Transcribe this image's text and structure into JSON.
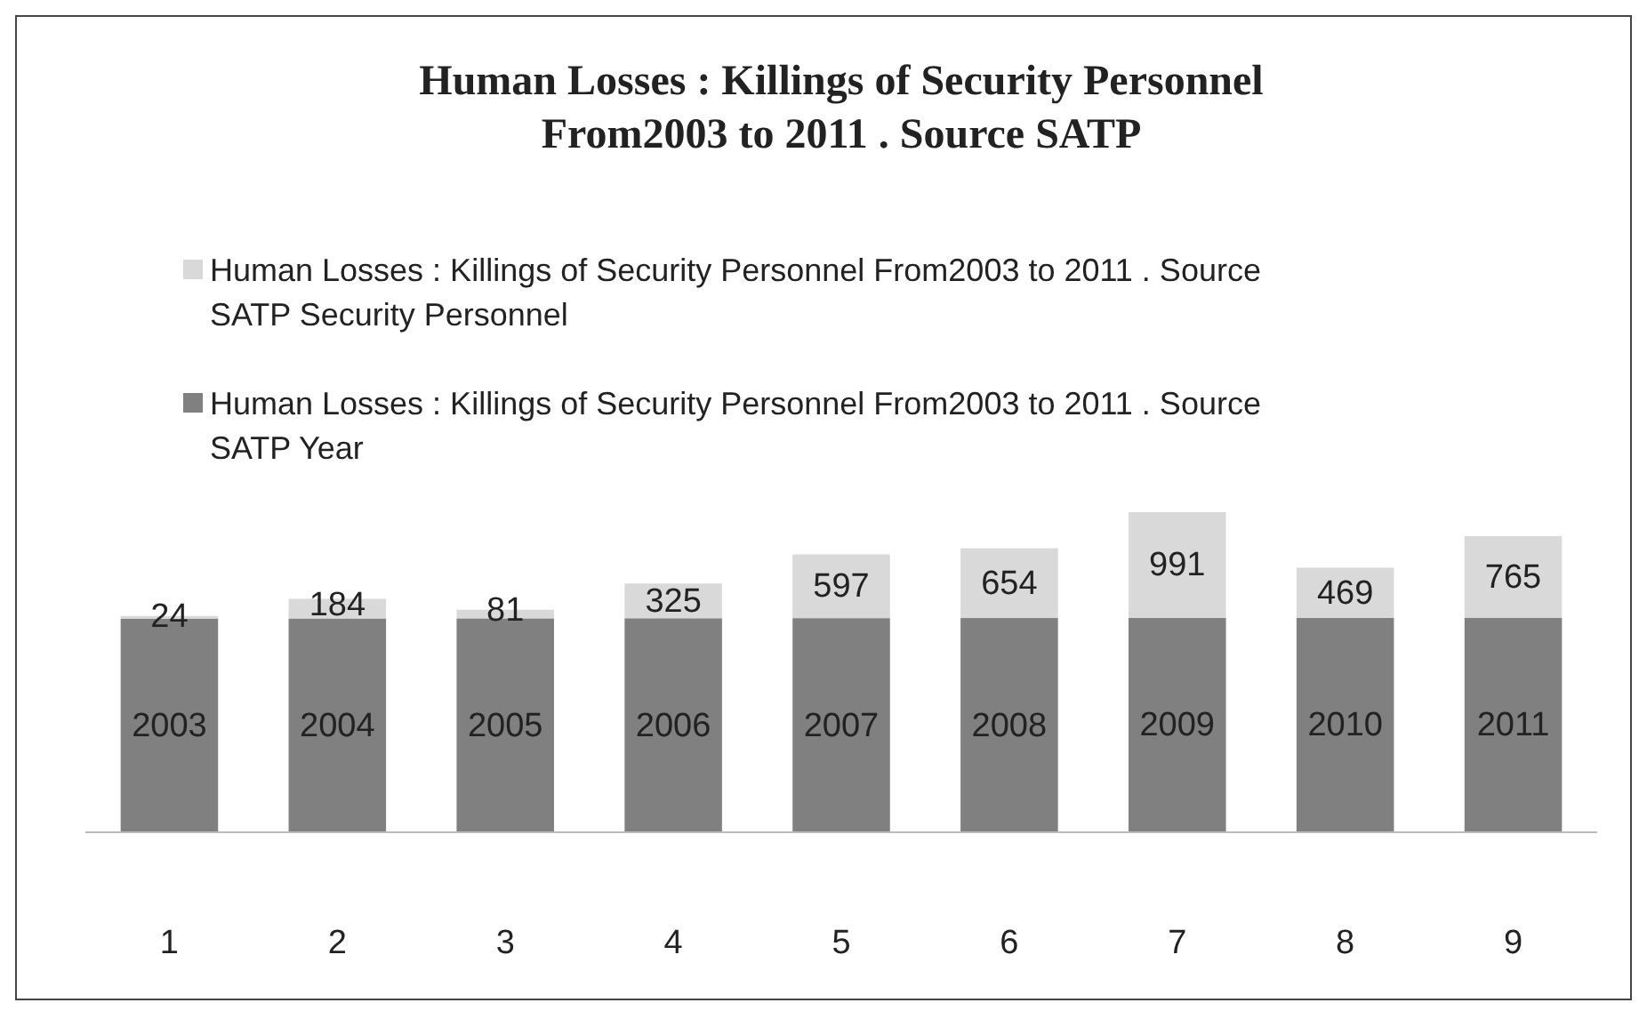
{
  "chart_data": {
    "type": "bar",
    "title": "Human Losses : Killings of Security Personnel From2003 to 2011 . Source SATP",
    "categories": [
      "1",
      "2",
      "3",
      "4",
      "5",
      "6",
      "7",
      "8",
      "9"
    ],
    "stacked": true,
    "data_labels": true,
    "legend": "top left",
    "series": [
      {
        "name": "Human Losses : Killings of Security Personnel From2003 to 2011 . Source SATP Year",
        "color": "#808080",
        "values": [
          2003,
          2004,
          2005,
          2006,
          2007,
          2008,
          2009,
          2010,
          2011
        ]
      },
      {
        "name": "Human Losses : Killings of Security Personnel From2003 to 2011 . Source SATP Security Personnel",
        "color": "#d9d9d9",
        "values": [
          24,
          184,
          81,
          325,
          597,
          654,
          991,
          469,
          765
        ]
      }
    ]
  }
}
